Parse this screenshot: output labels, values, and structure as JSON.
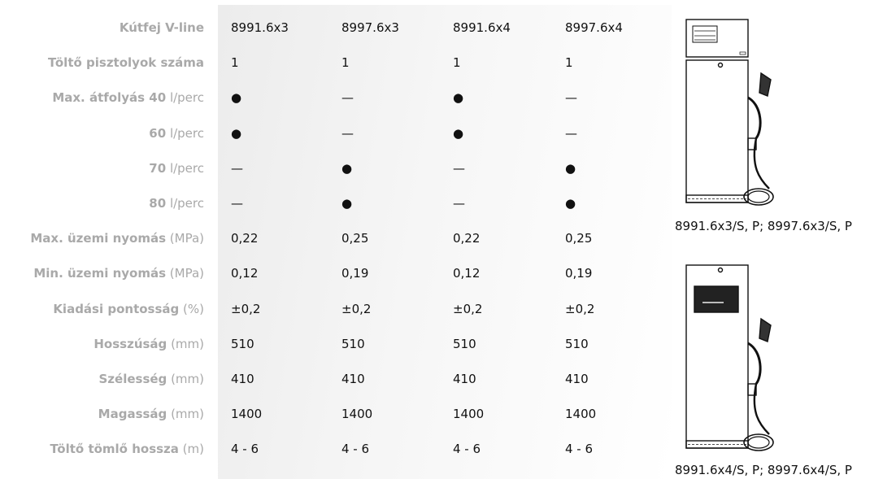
{
  "labels": [
    {
      "bold": "Kútfej V-line",
      "unit": ""
    },
    {
      "bold": "Töltő pisztolyok száma",
      "unit": ""
    },
    {
      "bold": "Max. átfolyás 40",
      "unit": " l/perc"
    },
    {
      "bold": "60",
      "unit": " l/perc"
    },
    {
      "bold": "70",
      "unit": " l/perc"
    },
    {
      "bold": "80",
      "unit": " l/perc"
    },
    {
      "bold": "Max. üzemi nyomás",
      "unit": " (MPa)"
    },
    {
      "bold": "Min. üzemi nyomás",
      "unit": " (MPa)"
    },
    {
      "bold": "Kiadási pontosság",
      "unit": " (%)"
    },
    {
      "bold": "Hosszúság",
      "unit": " (mm)"
    },
    {
      "bold": "Szélesség",
      "unit": " (mm)"
    },
    {
      "bold": "Magasság",
      "unit": " (mm)"
    },
    {
      "bold": "Töltő tömlő hossza",
      "unit": " (m)"
    }
  ],
  "columns": [
    [
      "8991.6x3",
      "1",
      "●",
      "●",
      "—",
      "—",
      "0,22",
      "0,12",
      "±0,2",
      "510",
      "410",
      "1400",
      "4 - 6"
    ],
    [
      "8997.6x3",
      "1",
      "—",
      "—",
      "●",
      "●",
      "0,25",
      "0,19",
      "±0,2",
      "510",
      "410",
      "1400",
      "4 - 6"
    ],
    [
      "8991.6x4",
      "1",
      "●",
      "●",
      "—",
      "—",
      "0,22",
      "0,12",
      "±0,2",
      "510",
      "410",
      "1400",
      "4 - 6"
    ],
    [
      "8997.6x4",
      "1",
      "—",
      "—",
      "●",
      "●",
      "0,25",
      "0,19",
      "±0,2",
      "510",
      "410",
      "1400",
      "4 - 6"
    ]
  ],
  "captions": {
    "top": "8991.6x3/S, P; 8997.6x3/S, P",
    "bottom": "8991.6x4/S, P; 8997.6x4/S, P"
  }
}
